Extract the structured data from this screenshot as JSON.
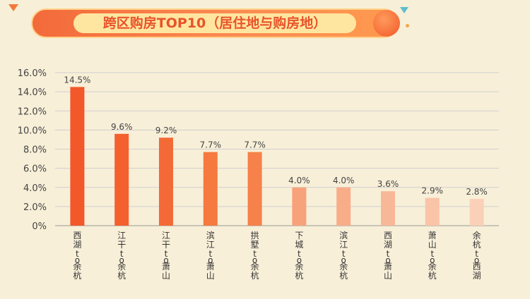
{
  "chart_data": {
    "type": "bar",
    "title": "跨区购房TOP10（居住地与购房地）",
    "xlabel": "",
    "ylabel": "",
    "ylim": [
      0,
      16
    ],
    "yticks": [
      "0%",
      "2.0%",
      "4.0%",
      "6.0%",
      "8.0%",
      "10.0%",
      "12.0%",
      "14.0%",
      "16.0%"
    ],
    "grid": true,
    "categories": [
      "西湖to余杭",
      "江干to余杭",
      "江干to萧山",
      "滨江to萧山",
      "拱墅to余杭",
      "下城to余杭",
      "滨江to余杭",
      "西湖to萧山",
      "萧山to余杭",
      "余杭to西湖"
    ],
    "values": [
      14.5,
      9.6,
      9.2,
      7.7,
      7.7,
      4.0,
      4.0,
      3.6,
      2.9,
      2.8
    ],
    "data_labels": [
      "14.5%",
      "9.6%",
      "9.2%",
      "7.7%",
      "7.7%",
      "4.0%",
      "4.0%",
      "3.6%",
      "2.9%",
      "2.8%"
    ],
    "colors": [
      "#f2582a",
      "#f4602e",
      "#f46a36",
      "#f6793f",
      "#f6814a",
      "#f7a27a",
      "#f8ad88",
      "#f8b898",
      "#f9c4a8",
      "#fad0b8"
    ]
  }
}
